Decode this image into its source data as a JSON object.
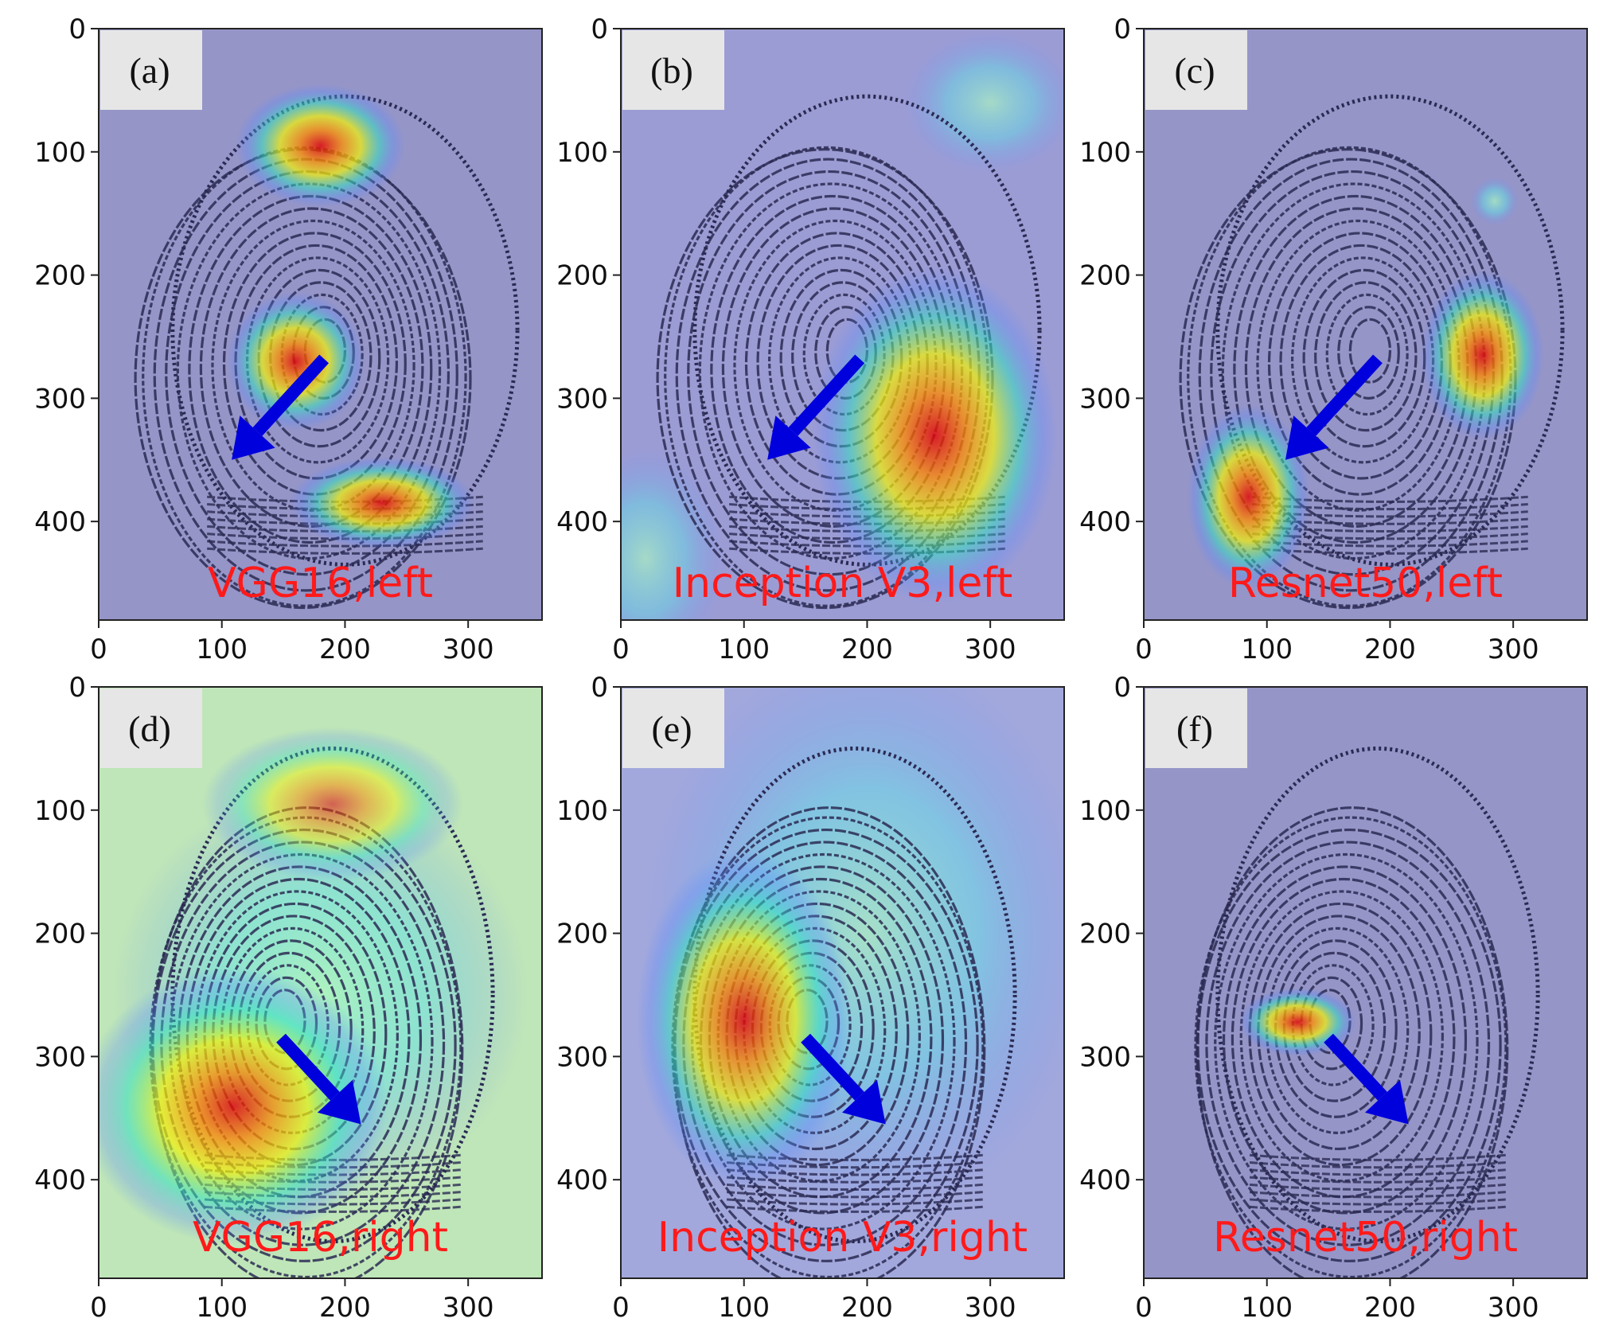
{
  "figure": {
    "panels": [
      {
        "label": "(a)",
        "caption": "VGG16,left",
        "model": "VGG16",
        "hand": "left",
        "background": "#9595c8",
        "fingerprint": "loop-left",
        "hotspots": [
          {
            "cx": 180,
            "cy": 95,
            "rx": 55,
            "ry": 40,
            "heat": 1.0
          },
          {
            "cx": 160,
            "cy": 270,
            "rx": 45,
            "ry": 45,
            "heat": 1.0
          },
          {
            "cx": 230,
            "cy": 385,
            "rx": 60,
            "ry": 30,
            "heat": 1.0
          }
        ],
        "arrow": {
          "from": [
            183,
            268
          ],
          "to": [
            108,
            350
          ],
          "dir": "down-left"
        }
      },
      {
        "label": "(b)",
        "caption": "Inception V3,left",
        "model": "Inception V3",
        "hand": "left",
        "background": "#9c9cd4",
        "fingerprint": "loop-left",
        "hotspots": [
          {
            "cx": 255,
            "cy": 330,
            "rx": 80,
            "ry": 110,
            "heat": 1.0
          },
          {
            "cx": 300,
            "cy": 60,
            "rx": 55,
            "ry": 45,
            "heat": 0.35
          },
          {
            "cx": 20,
            "cy": 430,
            "rx": 50,
            "ry": 70,
            "heat": 0.35
          }
        ],
        "arrow": {
          "from": [
            194,
            268
          ],
          "to": [
            119,
            350
          ],
          "dir": "down-left"
        }
      },
      {
        "label": "(c)",
        "caption": "Resnet50,left",
        "model": "Resnet50",
        "hand": "left",
        "background": "#9595c8",
        "fingerprint": "loop-left",
        "hotspots": [
          {
            "cx": 275,
            "cy": 265,
            "rx": 40,
            "ry": 55,
            "heat": 1.0
          },
          {
            "cx": 85,
            "cy": 380,
            "rx": 40,
            "ry": 60,
            "heat": 1.0
          },
          {
            "cx": 285,
            "cy": 140,
            "rx": 15,
            "ry": 15,
            "heat": 0.4
          }
        ],
        "arrow": {
          "from": [
            190,
            268
          ],
          "to": [
            115,
            350
          ],
          "dir": "down-left"
        }
      },
      {
        "label": "(d)",
        "caption": "VGG16,right",
        "model": "VGG16",
        "hand": "right",
        "background": "#bfe6b8",
        "fingerprint": "loop-right",
        "hotspots": [
          {
            "cx": 110,
            "cy": 340,
            "rx": 100,
            "ry": 90,
            "heat": 1.0
          },
          {
            "cx": 190,
            "cy": 95,
            "rx": 85,
            "ry": 50,
            "heat": 0.7
          },
          {
            "cx": 180,
            "cy": 250,
            "rx": 130,
            "ry": 130,
            "heat": 0.45
          }
        ],
        "arrow": {
          "from": [
            148,
            285
          ],
          "to": [
            213,
            355
          ],
          "dir": "down-right"
        }
      },
      {
        "label": "(e)",
        "caption": "Inception V3,right",
        "model": "Inception V3",
        "hand": "right",
        "background": "#a2a8dc",
        "fingerprint": "loop-right",
        "hotspots": [
          {
            "cx": 100,
            "cy": 270,
            "rx": 70,
            "ry": 110,
            "heat": 1.0
          },
          {
            "cx": 200,
            "cy": 200,
            "rx": 140,
            "ry": 180,
            "heat": 0.4
          }
        ],
        "arrow": {
          "from": [
            150,
            285
          ],
          "to": [
            215,
            355
          ],
          "dir": "down-right"
        }
      },
      {
        "label": "(f)",
        "caption": "Resnet50,right",
        "model": "Resnet50",
        "hand": "right",
        "background": "#9595c8",
        "fingerprint": "loop-right",
        "hotspots": [
          {
            "cx": 125,
            "cy": 272,
            "rx": 38,
            "ry": 22,
            "heat": 1.0
          }
        ],
        "arrow": {
          "from": [
            150,
            285
          ],
          "to": [
            215,
            355
          ],
          "dir": "down-right"
        }
      }
    ],
    "axes": {
      "xlim": [
        0,
        360
      ],
      "ylim": [
        0,
        480
      ],
      "xticks": [
        0,
        100,
        200,
        300
      ],
      "yticks": [
        0,
        100,
        200,
        300,
        400
      ],
      "xtick_labels": [
        "0",
        "100",
        "200",
        "300"
      ],
      "ytick_labels": [
        "0",
        "100",
        "200",
        "300",
        "400"
      ]
    },
    "colors": {
      "caption": "#ff1a1a",
      "arrow": "#0000dd",
      "ridge": "#2a2a52",
      "label_box": "#e6e6e6"
    }
  }
}
